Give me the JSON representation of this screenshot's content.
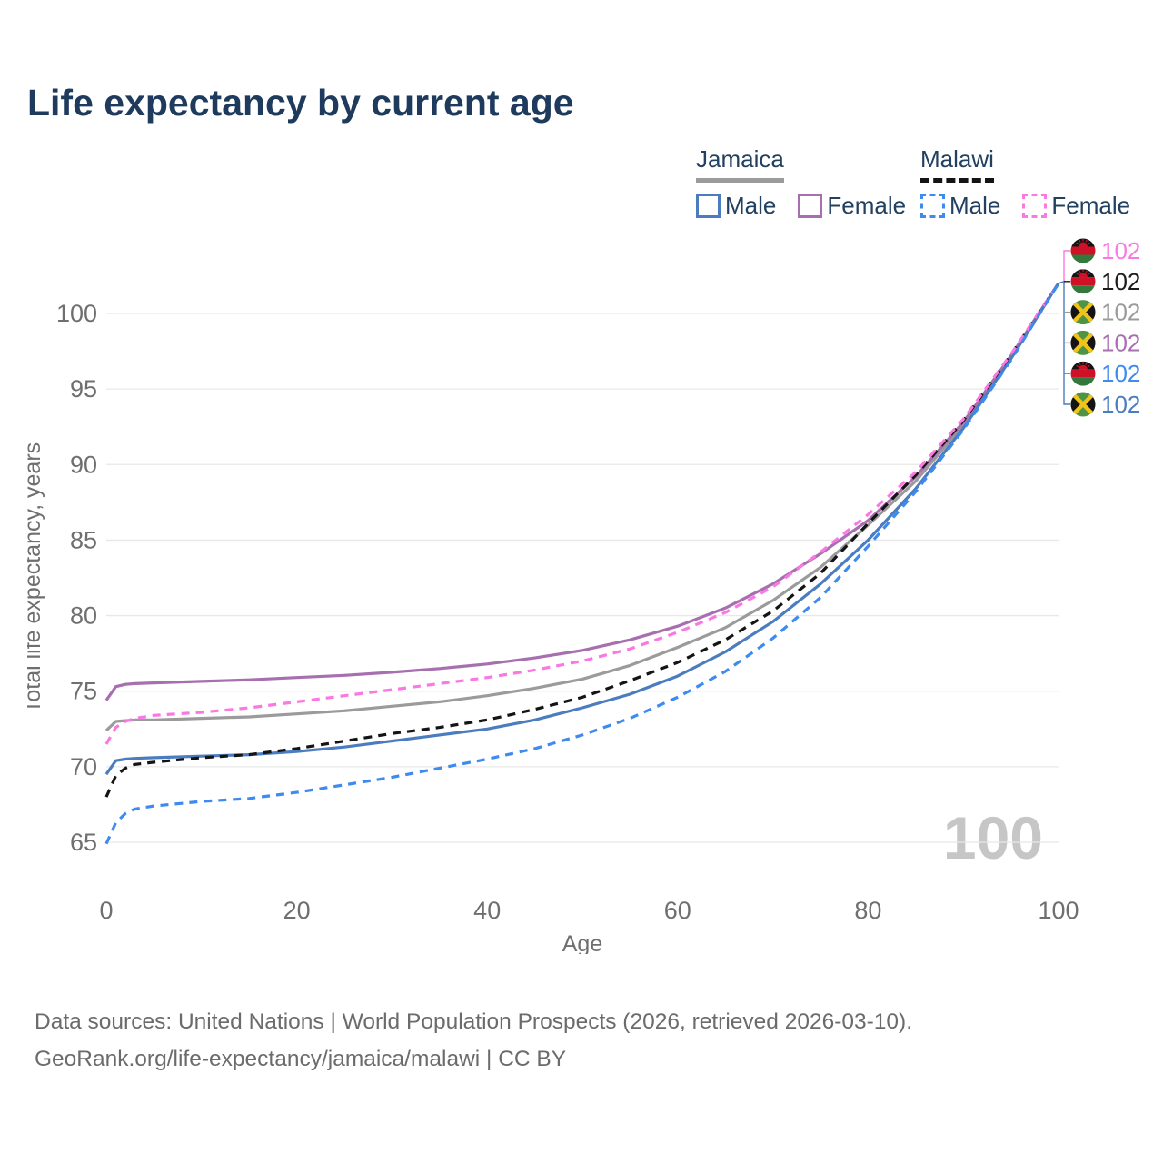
{
  "header": {
    "title": "Life expectancy by current age"
  },
  "legend": {
    "groups": [
      {
        "name": "Jamaica",
        "line_style": "solid",
        "underline_color": "#9b9b9b",
        "items": [
          {
            "label": "Male",
            "color": "#4a7cbf",
            "dashed": false
          },
          {
            "label": "Female",
            "color": "#a86fb0",
            "dashed": false
          }
        ]
      },
      {
        "name": "Malawi",
        "line_style": "dashed",
        "underline_color": "#141414",
        "items": [
          {
            "label": "Male",
            "color": "#3e8bf0",
            "dashed": true
          },
          {
            "label": "Female",
            "color": "#fb78e3",
            "dashed": true
          }
        ]
      }
    ]
  },
  "chart_data": {
    "type": "line",
    "title": "Life expectancy by current age",
    "xlabel": "Age",
    "ylabel": "Total life expectancy, years",
    "xlim": [
      0,
      100
    ],
    "ylim": [
      63,
      103
    ],
    "xticks": [
      0,
      20,
      40,
      60,
      80,
      100
    ],
    "yticks": [
      65,
      70,
      75,
      80,
      85,
      90,
      95,
      100
    ],
    "grid": "horizontal-only",
    "watermark": "100",
    "x": [
      0,
      1,
      2,
      3,
      5,
      10,
      15,
      20,
      25,
      30,
      35,
      40,
      45,
      50,
      55,
      60,
      65,
      70,
      75,
      80,
      85,
      90,
      95,
      100
    ],
    "series": [
      {
        "name": "Jamaica",
        "country": "Jamaica",
        "sex": "both",
        "color": "#9b9b9b",
        "dashed": false,
        "values": [
          72.4,
          73.0,
          73.05,
          73.1,
          73.1,
          73.2,
          73.3,
          73.5,
          73.7,
          74.0,
          74.3,
          74.7,
          75.2,
          75.8,
          76.7,
          77.9,
          79.2,
          81.0,
          83.2,
          86.0,
          88.9,
          92.6,
          97.1,
          102
        ]
      },
      {
        "name": "Jamaica Female",
        "country": "Jamaica",
        "sex": "female",
        "color": "#a86fb0",
        "dashed": false,
        "values": [
          74.4,
          75.3,
          75.45,
          75.5,
          75.55,
          75.65,
          75.75,
          75.9,
          76.05,
          76.25,
          76.5,
          76.8,
          77.2,
          77.7,
          78.4,
          79.3,
          80.5,
          82.1,
          84.1,
          86.3,
          89.2,
          92.8,
          97.2,
          102
        ]
      },
      {
        "name": "Jamaica Male",
        "country": "Jamaica",
        "sex": "male",
        "color": "#4a7cbf",
        "dashed": false,
        "values": [
          69.5,
          70.4,
          70.5,
          70.55,
          70.6,
          70.7,
          70.8,
          71.0,
          71.3,
          71.7,
          72.1,
          72.5,
          73.1,
          73.9,
          74.8,
          76.0,
          77.6,
          79.6,
          82.1,
          85.0,
          88.4,
          92.4,
          97.0,
          102
        ]
      },
      {
        "name": "Malawi",
        "country": "Malawi",
        "sex": "both",
        "color": "#141414",
        "dashed": true,
        "values": [
          68.0,
          69.4,
          69.9,
          70.15,
          70.3,
          70.6,
          70.8,
          71.2,
          71.7,
          72.2,
          72.6,
          73.1,
          73.8,
          74.6,
          75.7,
          76.9,
          78.4,
          80.3,
          82.8,
          86.1,
          89.3,
          92.9,
          97.25,
          102
        ]
      },
      {
        "name": "Malawi Female",
        "country": "Malawi",
        "sex": "female",
        "color": "#fb78e3",
        "dashed": true,
        "values": [
          71.5,
          72.6,
          73.0,
          73.2,
          73.4,
          73.6,
          73.9,
          74.3,
          74.7,
          75.1,
          75.5,
          75.9,
          76.4,
          77.0,
          77.8,
          78.9,
          80.2,
          81.9,
          84.2,
          86.7,
          89.5,
          93.0,
          97.3,
          102
        ]
      },
      {
        "name": "Malawi Male",
        "country": "Malawi",
        "sex": "male",
        "color": "#3e8bf0",
        "dashed": true,
        "values": [
          64.9,
          66.3,
          66.9,
          67.2,
          67.4,
          67.7,
          67.9,
          68.3,
          68.8,
          69.3,
          69.9,
          70.5,
          71.2,
          72.1,
          73.2,
          74.6,
          76.3,
          78.5,
          81.2,
          84.6,
          88.2,
          92.3,
          96.9,
          102
        ]
      }
    ],
    "end_labels": [
      {
        "flag": "malawi",
        "value": "102",
        "color": "#fb78e3"
      },
      {
        "flag": "malawi",
        "value": "102",
        "color": "#1c1c1c"
      },
      {
        "flag": "jamaica",
        "value": "102",
        "color": "#9b9b9b"
      },
      {
        "flag": "jamaica",
        "value": "102",
        "color": "#a86fb0"
      },
      {
        "flag": "malawi",
        "value": "102",
        "color": "#3e8bf0"
      },
      {
        "flag": "jamaica",
        "value": "102",
        "color": "#4a7cbf"
      }
    ]
  },
  "footer": {
    "line1": "Data sources: United Nations | World Population Prospects (2026, retrieved 2026-03-10).",
    "line2": "GeoRank.org/life-expectancy/jamaica/malawi | CC BY"
  }
}
